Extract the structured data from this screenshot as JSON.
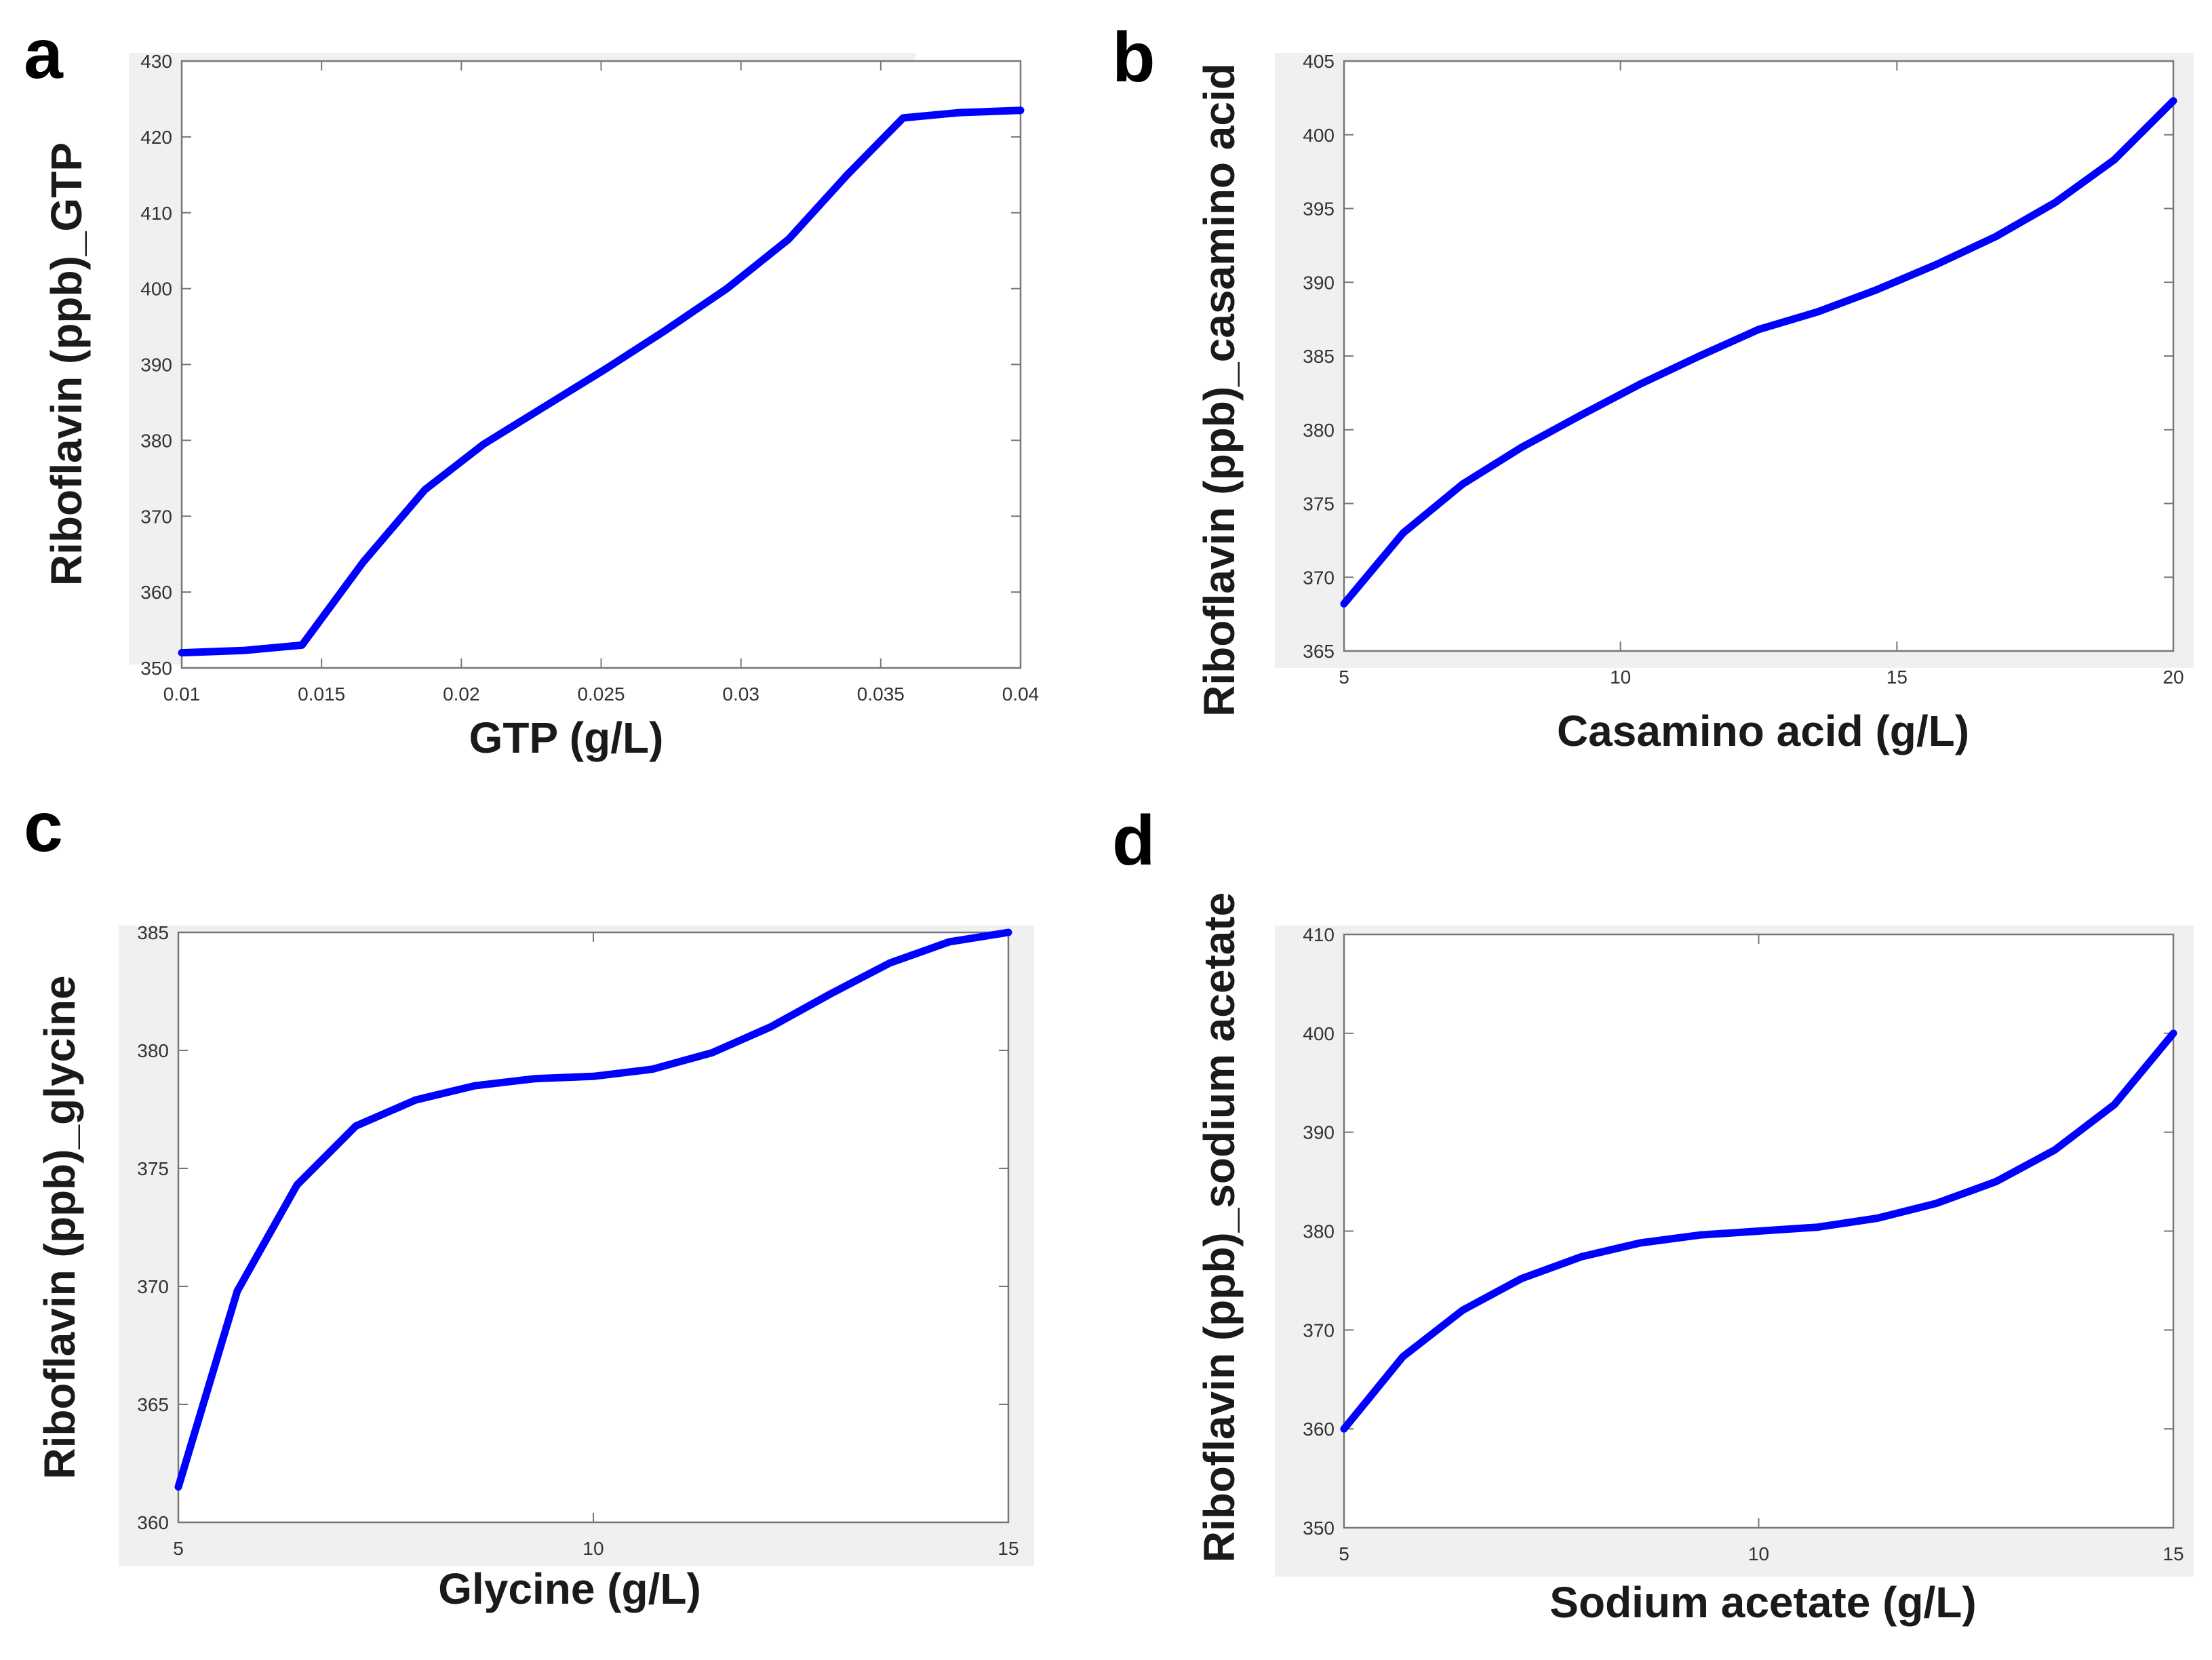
{
  "chart_data": [
    {
      "type": "line",
      "panel": "a",
      "xlabel": "GTP (g/L)",
      "ylabel": "Riboflavin (ppb)_GTP",
      "xlim": [
        0.01,
        0.04
      ],
      "ylim": [
        350,
        430
      ],
      "xticks": [
        "0.01",
        "0.015",
        "0.02",
        "0.025",
        "0.03",
        "0.035",
        "0.04"
      ],
      "yticks": [
        "350",
        "360",
        "370",
        "380",
        "390",
        "400",
        "410",
        "420",
        "430"
      ],
      "color": "#0000ff",
      "x": [
        0.01,
        0.0122,
        0.0143,
        0.0165,
        0.0187,
        0.0208,
        0.023,
        0.0252,
        0.0273,
        0.0295,
        0.0317,
        0.0338,
        0.0358,
        0.0378,
        0.04
      ],
      "y": [
        352,
        352.3,
        353,
        364,
        373.5,
        379.5,
        384.5,
        389.5,
        394.5,
        400,
        406.5,
        415,
        422.5,
        423.2,
        423.5
      ]
    },
    {
      "type": "line",
      "panel": "b",
      "xlabel": "Casamino acid (g/L)",
      "ylabel": "Riboflavin (ppb)_casamino acid",
      "xlim": [
        5,
        20
      ],
      "ylim": [
        365,
        405
      ],
      "xticks": [
        "5",
        "10",
        "15",
        "20"
      ],
      "yticks": [
        "365",
        "370",
        "375",
        "380",
        "385",
        "390",
        "395",
        "400",
        "405"
      ],
      "color": "#0000ff",
      "x": [
        5,
        6.07,
        7.14,
        8.21,
        9.29,
        10.36,
        11.43,
        12.5,
        13.57,
        14.64,
        15.71,
        16.79,
        17.86,
        18.93,
        20
      ],
      "y": [
        368.2,
        373,
        376.3,
        378.8,
        381,
        383.1,
        385,
        386.8,
        388,
        389.5,
        391.2,
        393.1,
        395.4,
        398.3,
        402.3
      ]
    },
    {
      "type": "line",
      "panel": "c",
      "xlabel": "Glycine (g/L)",
      "ylabel": "Riboflavin (ppb)_glycine",
      "xlim": [
        5,
        15
      ],
      "ylim": [
        360,
        385
      ],
      "xticks": [
        "5",
        "10",
        "15"
      ],
      "yticks": [
        "360",
        "365",
        "370",
        "375",
        "380",
        "385"
      ],
      "color": "#0000ff",
      "x": [
        5,
        5.71,
        6.43,
        7.14,
        7.86,
        8.57,
        9.29,
        10,
        10.71,
        11.43,
        12.14,
        12.86,
        13.57,
        14.29,
        15
      ],
      "y": [
        361.5,
        369.8,
        374.3,
        376.8,
        377.9,
        378.5,
        378.8,
        378.9,
        379.2,
        379.9,
        381,
        382.4,
        383.7,
        384.6,
        385
      ]
    },
    {
      "type": "line",
      "panel": "d",
      "xlabel": "Sodium acetate (g/L)",
      "ylabel": "Riboflavin (ppb)_sodium acetate",
      "xlim": [
        5,
        15
      ],
      "ylim": [
        350,
        410
      ],
      "xticks": [
        "5",
        "10",
        "15"
      ],
      "yticks": [
        "350",
        "360",
        "370",
        "380",
        "390",
        "400",
        "410"
      ],
      "color": "#0000ff",
      "x": [
        5,
        5.71,
        6.43,
        7.14,
        7.86,
        8.57,
        9.29,
        10,
        10.71,
        11.43,
        12.14,
        12.86,
        13.57,
        14.29,
        15
      ],
      "y": [
        360,
        367.3,
        372,
        375.2,
        377.4,
        378.8,
        379.6,
        380,
        380.4,
        381.3,
        382.8,
        385,
        388.2,
        392.8,
        400
      ]
    }
  ]
}
